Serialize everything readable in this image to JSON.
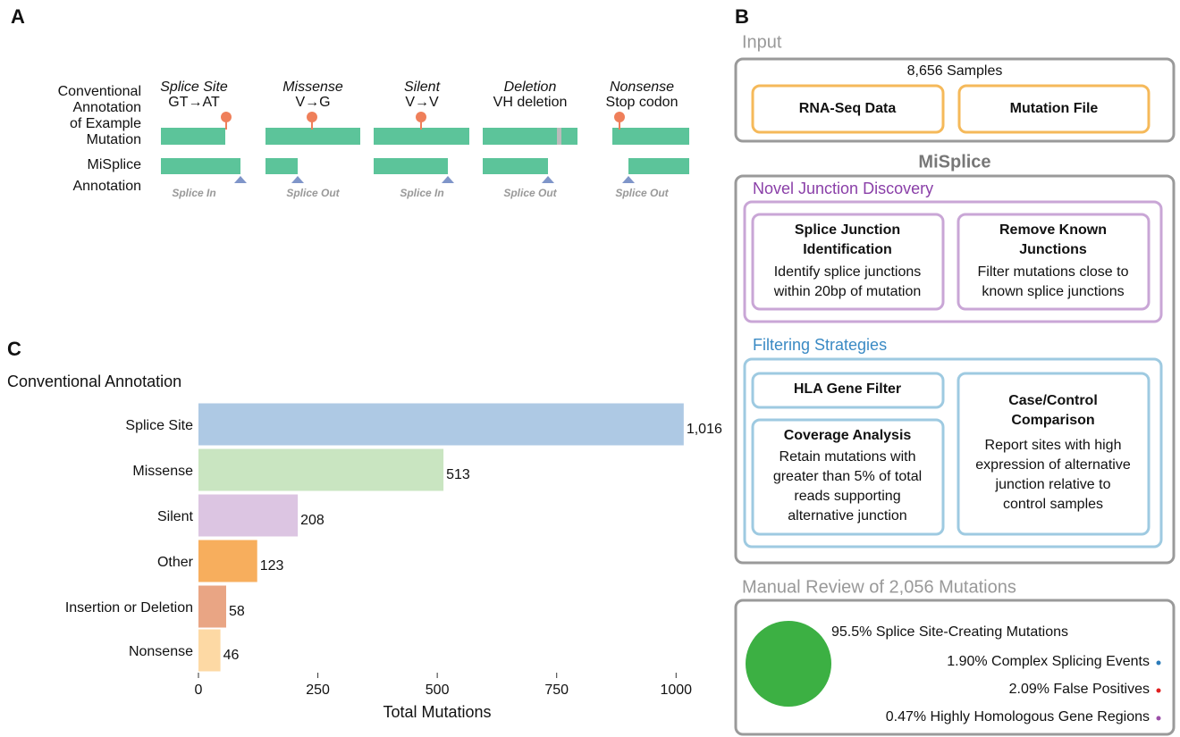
{
  "panel_a": {
    "label": "A",
    "row_labels": [
      [
        "Conventional",
        "Annotation",
        "of Example",
        "Mutation"
      ],
      [
        "MiSplice",
        "Annotation"
      ]
    ],
    "examples": [
      {
        "name": "Splice Site",
        "change": "GT→AT",
        "annotation": "Splice In"
      },
      {
        "name": "Missense",
        "change": "V→G",
        "annotation": "Splice Out"
      },
      {
        "name": "Silent",
        "change": "V→V",
        "annotation": "Splice In"
      },
      {
        "name": "Deletion",
        "change": "VH deletion",
        "annotation": "Splice Out"
      },
      {
        "name": "Nonsense",
        "change": "Stop codon",
        "annotation": "Splice Out"
      }
    ]
  },
  "panel_b": {
    "label": "B",
    "input": {
      "title": "Input",
      "samples": "8,656 Samples",
      "boxes": [
        "RNA-Seq Data",
        "Mutation File"
      ]
    },
    "pipeline": {
      "title": "MiSplice",
      "discovery": {
        "title": "Novel Junction Discovery",
        "steps": [
          {
            "title": [
              "Splice Junction",
              "Identification"
            ],
            "text": [
              "Identify splice junctions",
              "within 20bp of mutation"
            ]
          },
          {
            "title": [
              "Remove Known",
              "Junctions"
            ],
            "text": [
              "Filter mutations close to",
              "known splice junctions"
            ]
          }
        ]
      },
      "filtering": {
        "title": "Filtering Strategies",
        "steps": [
          {
            "title": [
              "HLA Gene Filter"
            ],
            "text": []
          },
          {
            "title": [
              "Coverage Analysis"
            ],
            "text": [
              "Retain mutations with",
              "greater than 5% of total",
              "reads supporting",
              "alternative junction"
            ]
          },
          {
            "title": [
              "Case/Control",
              "Comparison"
            ],
            "text": [
              "Report sites with high",
              "expression of alternative",
              "junction relative to",
              "control samples"
            ]
          }
        ]
      }
    },
    "review": {
      "title": "Manual Review of 2,056 Mutations",
      "items": [
        {
          "text": "95.5% Splice Site-Creating Mutations",
          "color": "#3cb043"
        },
        {
          "text": "1.90% Complex Splicing Events",
          "color": "#2b7bb9"
        },
        {
          "text": "2.09% False Positives",
          "color": "#e02020"
        },
        {
          "text": "0.47% Highly Homologous Gene Regions",
          "color": "#9b4fa8"
        }
      ]
    }
  },
  "chart_data": {
    "type": "bar",
    "orientation": "horizontal",
    "panel_label": "C",
    "y_label": "Conventional Annotation",
    "x_label": "Total Mutations",
    "categories": [
      "Splice Site",
      "Missense",
      "Silent",
      "Other",
      "Insertion or Deletion",
      "Nonsense"
    ],
    "values": [
      1016,
      513,
      208,
      123,
      58,
      46
    ],
    "value_labels": [
      "1,016",
      "513",
      "208",
      "123",
      "58",
      "46"
    ],
    "colors": [
      "#aec9e4",
      "#c9e5c1",
      "#dcc5e2",
      "#f7ae5d",
      "#e9a584",
      "#fdd9a4"
    ],
    "xlim": [
      0,
      1050
    ],
    "xticks": [
      0,
      250,
      500,
      750,
      1000
    ]
  }
}
